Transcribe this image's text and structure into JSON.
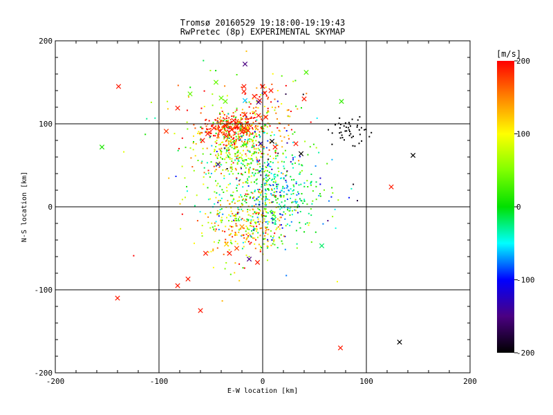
{
  "chart_data": {
    "type": "scatter",
    "title": "Tromsø 20160529 19:18:00-19:19:43",
    "subtitle": "RwPretec (8p) EXPERIMENTAL SKYMAP",
    "xlabel": "E-W location [km]",
    "ylabel": "N-S location [km]",
    "xlim": [
      -200,
      200
    ],
    "ylim": [
      -200,
      200
    ],
    "xticks": [
      -200,
      -100,
      0,
      100,
      200
    ],
    "yticks": [
      -200,
      -100,
      0,
      100,
      200
    ],
    "grid": true,
    "colorbar": {
      "label": "[m/s]",
      "range": [
        -200,
        200
      ],
      "ticks": [
        200,
        100,
        0,
        -100,
        -200
      ]
    },
    "markers_x": [
      {
        "x": -139,
        "y": 145,
        "v": 190
      },
      {
        "x": -155,
        "y": 72,
        "v": 10
      },
      {
        "x": -93,
        "y": 91,
        "v": 180
      },
      {
        "x": -140,
        "y": -110,
        "v": 190
      },
      {
        "x": -82,
        "y": -95,
        "v": 190
      },
      {
        "x": -72,
        "y": -87,
        "v": 190
      },
      {
        "x": -60,
        "y": -125,
        "v": 190
      },
      {
        "x": -55,
        "y": -56,
        "v": 190
      },
      {
        "x": -32,
        "y": -56,
        "v": 190
      },
      {
        "x": -25,
        "y": -50,
        "v": 170
      },
      {
        "x": -13,
        "y": -63,
        "v": -150
      },
      {
        "x": -5,
        "y": -67,
        "v": 190
      },
      {
        "x": -17,
        "y": 128,
        "v": -60
      },
      {
        "x": -18,
        "y": 139,
        "v": 190
      },
      {
        "x": -8,
        "y": 133,
        "v": 190
      },
      {
        "x": -3,
        "y": 128,
        "v": 190
      },
      {
        "x": 0,
        "y": 145,
        "v": 190
      },
      {
        "x": 2,
        "y": 137,
        "v": 190
      },
      {
        "x": 8,
        "y": 140,
        "v": 190
      },
      {
        "x": -36,
        "y": 127,
        "v": 40
      },
      {
        "x": -45,
        "y": 150,
        "v": 40
      },
      {
        "x": -40,
        "y": 131,
        "v": 40
      },
      {
        "x": -70,
        "y": 136,
        "v": 40
      },
      {
        "x": -53,
        "y": 88,
        "v": 190
      },
      {
        "x": -47,
        "y": 95,
        "v": 190
      },
      {
        "x": -41,
        "y": 91,
        "v": 190
      },
      {
        "x": -36,
        "y": 98,
        "v": 190
      },
      {
        "x": -30,
        "y": 93,
        "v": 190
      },
      {
        "x": -25,
        "y": 97,
        "v": 190
      },
      {
        "x": -20,
        "y": 90,
        "v": 190
      },
      {
        "x": -35,
        "y": 85,
        "v": 180
      },
      {
        "x": -28,
        "y": 104,
        "v": 190
      },
      {
        "x": -4,
        "y": 110,
        "v": 190
      },
      {
        "x": 3,
        "y": 108,
        "v": 190
      },
      {
        "x": -14,
        "y": 92,
        "v": 190
      },
      {
        "x": -43,
        "y": 51,
        "v": -140
      },
      {
        "x": -2,
        "y": 76,
        "v": -140
      },
      {
        "x": 9,
        "y": 79,
        "v": -200
      },
      {
        "x": 12,
        "y": 72,
        "v": 190
      },
      {
        "x": -4,
        "y": 126,
        "v": -150
      },
      {
        "x": -17,
        "y": 75,
        "v": 30
      },
      {
        "x": -18,
        "y": 145,
        "v": 190
      },
      {
        "x": -17,
        "y": 111,
        "v": 190
      },
      {
        "x": 37,
        "y": 64,
        "v": -200
      },
      {
        "x": 32,
        "y": 76,
        "v": 190
      },
      {
        "x": 40,
        "y": 130,
        "v": 190
      },
      {
        "x": 42,
        "y": 162,
        "v": 30
      },
      {
        "x": 76,
        "y": 127,
        "v": 20
      },
      {
        "x": 124,
        "y": 24,
        "v": 190
      },
      {
        "x": 145,
        "y": 62,
        "v": -200
      },
      {
        "x": -17,
        "y": 172,
        "v": -150
      },
      {
        "x": -35,
        "y": -45,
        "v": 120
      },
      {
        "x": -20,
        "y": -24,
        "v": 140
      },
      {
        "x": 11,
        "y": -15,
        "v": -20
      },
      {
        "x": 57,
        "y": -47,
        "v": -20
      },
      {
        "x": 75,
        "y": -170,
        "v": 190
      },
      {
        "x": 132,
        "y": -163,
        "v": -200
      },
      {
        "x": -82,
        "y": 119,
        "v": 190
      },
      {
        "x": -58,
        "y": 80,
        "v": 190
      },
      {
        "x": -18,
        "y": 95,
        "v": 190
      }
    ]
  }
}
